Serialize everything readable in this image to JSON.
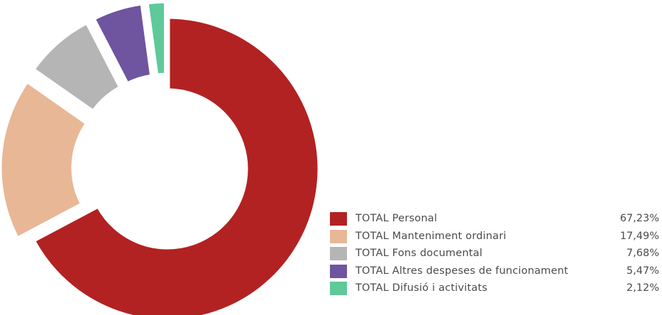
{
  "chart_data": {
    "type": "pie",
    "variant": "donut",
    "legend_position": "bottom-right",
    "slices": [
      {
        "label": "TOTAL Personal",
        "value_label": "67,23%",
        "value": 67.23,
        "color": "#b22222",
        "exploded": false
      },
      {
        "label": "TOTAL Manteniment ordinari",
        "value_label": "17,49%",
        "value": 17.49,
        "color": "#e8b796",
        "exploded": true
      },
      {
        "label": "TOTAL Fons documental",
        "value_label": "7,68%",
        "value": 7.68,
        "color": "#b5b5b5",
        "exploded": true
      },
      {
        "label": "TOTAL Altres despeses de funcionament",
        "value_label": "5,47%",
        "value": 5.47,
        "color": "#6f54a0",
        "exploded": true
      },
      {
        "label": "TOTAL Difusió i activitats",
        "value_label": "2,12%",
        "value": 2.12,
        "color": "#5fc99a",
        "exploded": true
      }
    ]
  }
}
